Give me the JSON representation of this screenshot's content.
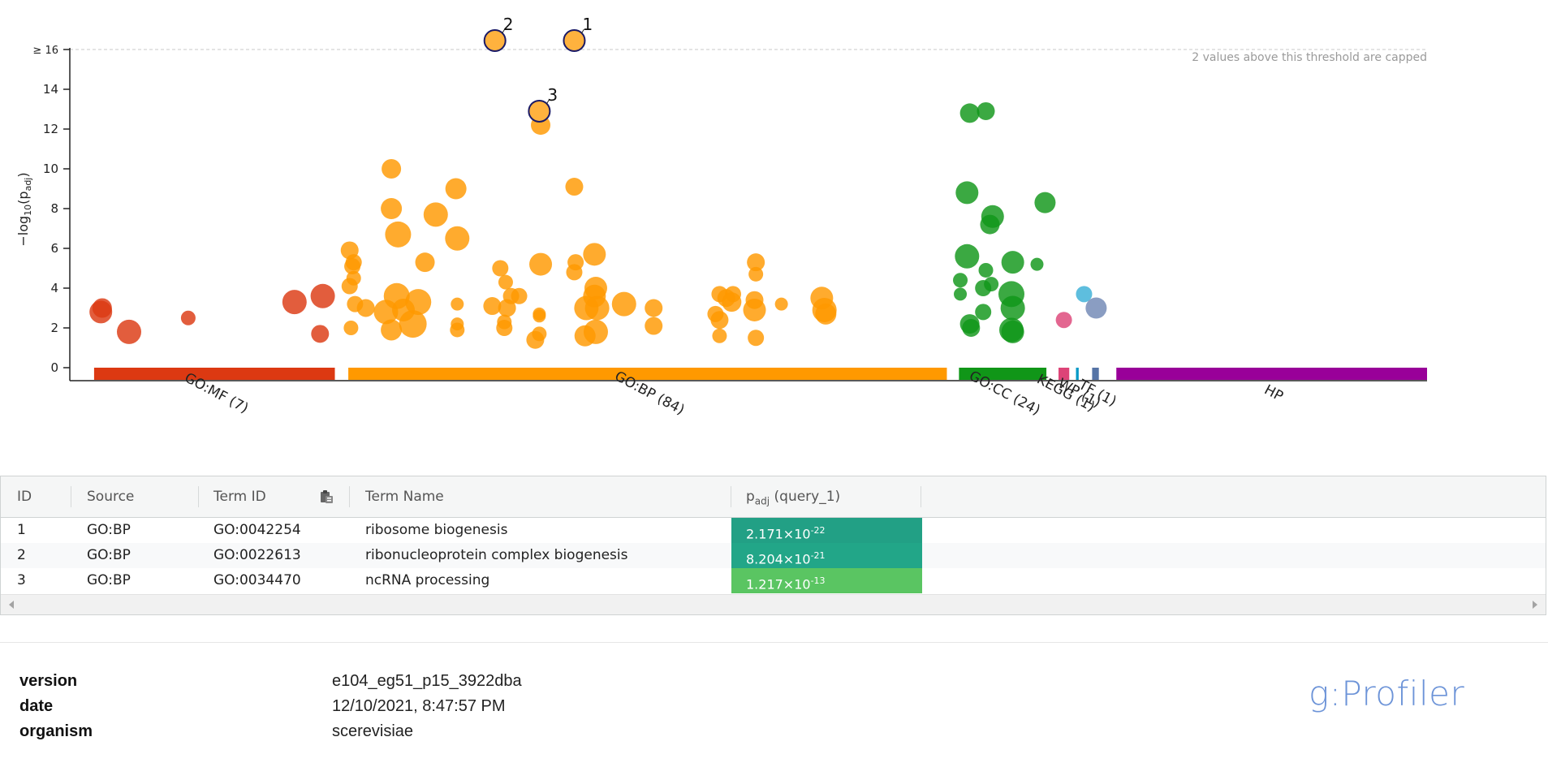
{
  "chart_data": {
    "type": "scatter",
    "ylabel_main": "−log",
    "ylabel_sub10": "10",
    "ylabel_paren_open": "(p",
    "ylabel_sub_adj": "adj",
    "ylabel_paren_close": ")",
    "yticks": [
      {
        "value": 0,
        "label": "0"
      },
      {
        "value": 2,
        "label": "2"
      },
      {
        "value": 4,
        "label": "4"
      },
      {
        "value": 6,
        "label": "6"
      },
      {
        "value": 8,
        "label": "8"
      },
      {
        "value": 10,
        "label": "10"
      },
      {
        "value": 12,
        "label": "12"
      },
      {
        "value": 14,
        "label": "14"
      },
      {
        "value": 16,
        "label": "≥ 16"
      }
    ],
    "ylim": [
      0,
      16
    ],
    "threshold": 16,
    "threshold_note": "2 values above this threshold are capped",
    "x_range": [
      0,
      1000
    ],
    "sources": [
      {
        "name": "GO:MF (7)",
        "start": 9,
        "end": 188,
        "color": "#dc3912"
      },
      {
        "name": "GO:BP (84)",
        "start": 198,
        "end": 643,
        "color": "#ff9900"
      },
      {
        "name": "GO:CC (24)",
        "start": 652,
        "end": 717,
        "color": "#109618"
      },
      {
        "name": "KEGG (1)",
        "start": 726,
        "end": 734,
        "color": "#dd4477"
      },
      {
        "name": "WP (1)",
        "start": 739,
        "end": 741,
        "color": "#0099c6"
      },
      {
        "name": "TF (1)",
        "start": 751,
        "end": 756,
        "color": "#5574a6"
      },
      {
        "name": "HP",
        "start": 769,
        "end": 1000,
        "color": "#990099"
      }
    ],
    "highlighted": [
      {
        "label": "2",
        "x": 307,
        "y": 16,
        "r": 13
      },
      {
        "label": "1",
        "x": 366,
        "y": 16,
        "r": 13
      },
      {
        "label": "3",
        "x": 340,
        "y": 12.9,
        "r": 13
      }
    ],
    "series": [
      {
        "source": "GO:MF",
        "color": "#dc3912",
        "points": [
          {
            "x": 14,
            "y": 2.8,
            "r": 14
          },
          {
            "x": 15,
            "y": 3.0,
            "r": 12
          },
          {
            "x": 35,
            "y": 1.8,
            "r": 15
          },
          {
            "x": 79,
            "y": 2.5,
            "r": 9
          },
          {
            "x": 158,
            "y": 3.3,
            "r": 15
          },
          {
            "x": 179,
            "y": 3.6,
            "r": 15
          },
          {
            "x": 177,
            "y": 1.7,
            "r": 11
          }
        ]
      },
      {
        "source": "GO:BP",
        "color": "#ff9900",
        "points": [
          {
            "x": 199,
            "y": 5.9,
            "r": 11
          },
          {
            "x": 202,
            "y": 5.3,
            "r": 10
          },
          {
            "x": 201,
            "y": 5.1,
            "r": 10
          },
          {
            "x": 202,
            "y": 4.5,
            "r": 9
          },
          {
            "x": 199,
            "y": 4.1,
            "r": 10
          },
          {
            "x": 203,
            "y": 3.2,
            "r": 10
          },
          {
            "x": 211,
            "y": 3.0,
            "r": 11
          },
          {
            "x": 200,
            "y": 2.0,
            "r": 9
          },
          {
            "x": 230,
            "y": 10.0,
            "r": 12
          },
          {
            "x": 230,
            "y": 8.0,
            "r": 13
          },
          {
            "x": 235,
            "y": 6.7,
            "r": 16
          },
          {
            "x": 255,
            "y": 5.3,
            "r": 12
          },
          {
            "x": 263,
            "y": 7.7,
            "r": 15
          },
          {
            "x": 278,
            "y": 9.0,
            "r": 13
          },
          {
            "x": 279,
            "y": 6.5,
            "r": 15
          },
          {
            "x": 234,
            "y": 3.6,
            "r": 16
          },
          {
            "x": 226,
            "y": 2.8,
            "r": 15
          },
          {
            "x": 239,
            "y": 2.9,
            "r": 14
          },
          {
            "x": 250,
            "y": 3.3,
            "r": 16
          },
          {
            "x": 246,
            "y": 2.2,
            "r": 17
          },
          {
            "x": 230,
            "y": 1.9,
            "r": 13
          },
          {
            "x": 279,
            "y": 3.2,
            "r": 8
          },
          {
            "x": 279,
            "y": 2.2,
            "r": 8
          },
          {
            "x": 279,
            "y": 1.9,
            "r": 9
          },
          {
            "x": 311,
            "y": 5.0,
            "r": 10
          },
          {
            "x": 315,
            "y": 4.3,
            "r": 9
          },
          {
            "x": 319,
            "y": 3.6,
            "r": 10
          },
          {
            "x": 305,
            "y": 3.1,
            "r": 11
          },
          {
            "x": 316,
            "y": 3.0,
            "r": 11
          },
          {
            "x": 325,
            "y": 3.6,
            "r": 10
          },
          {
            "x": 314,
            "y": 2.3,
            "r": 9
          },
          {
            "x": 314,
            "y": 2.0,
            "r": 10
          },
          {
            "x": 340,
            "y": 2.7,
            "r": 8
          },
          {
            "x": 340,
            "y": 2.6,
            "r": 8
          },
          {
            "x": 337,
            "y": 1.4,
            "r": 11
          },
          {
            "x": 340,
            "y": 1.7,
            "r": 9
          },
          {
            "x": 341,
            "y": 12.2,
            "r": 12
          },
          {
            "x": 341,
            "y": 5.2,
            "r": 14
          },
          {
            "x": 366,
            "y": 9.1,
            "r": 11
          },
          {
            "x": 367,
            "y": 5.3,
            "r": 10
          },
          {
            "x": 366,
            "y": 4.8,
            "r": 10
          },
          {
            "x": 381,
            "y": 5.7,
            "r": 14
          },
          {
            "x": 382,
            "y": 4.0,
            "r": 14
          },
          {
            "x": 381,
            "y": 3.6,
            "r": 14
          },
          {
            "x": 375,
            "y": 3.0,
            "r": 15
          },
          {
            "x": 383,
            "y": 3.0,
            "r": 15
          },
          {
            "x": 374,
            "y": 1.6,
            "r": 13
          },
          {
            "x": 382,
            "y": 1.8,
            "r": 15
          },
          {
            "x": 403,
            "y": 3.2,
            "r": 15
          },
          {
            "x": 425,
            "y": 3.0,
            "r": 11
          },
          {
            "x": 425,
            "y": 2.1,
            "r": 11
          },
          {
            "x": 474,
            "y": 3.7,
            "r": 10
          },
          {
            "x": 479,
            "y": 3.5,
            "r": 11
          },
          {
            "x": 471,
            "y": 2.7,
            "r": 10
          },
          {
            "x": 474,
            "y": 2.4,
            "r": 11
          },
          {
            "x": 484,
            "y": 3.7,
            "r": 10
          },
          {
            "x": 483,
            "y": 3.3,
            "r": 12
          },
          {
            "x": 474,
            "y": 1.6,
            "r": 9
          },
          {
            "x": 501,
            "y": 5.3,
            "r": 11
          },
          {
            "x": 501,
            "y": 4.7,
            "r": 9
          },
          {
            "x": 500,
            "y": 3.4,
            "r": 11
          },
          {
            "x": 500,
            "y": 2.9,
            "r": 14
          },
          {
            "x": 501,
            "y": 1.5,
            "r": 10
          },
          {
            "x": 520,
            "y": 3.2,
            "r": 8
          },
          {
            "x": 550,
            "y": 3.5,
            "r": 14
          },
          {
            "x": 552,
            "y": 2.9,
            "r": 15
          },
          {
            "x": 553,
            "y": 2.7,
            "r": 13
          }
        ]
      },
      {
        "source": "GO:CC",
        "color": "#109618",
        "points": [
          {
            "x": 660,
            "y": 12.8,
            "r": 12
          },
          {
            "x": 672,
            "y": 12.9,
            "r": 11
          },
          {
            "x": 658,
            "y": 8.8,
            "r": 14
          },
          {
            "x": 677,
            "y": 7.6,
            "r": 14
          },
          {
            "x": 675,
            "y": 7.2,
            "r": 12
          },
          {
            "x": 658,
            "y": 5.6,
            "r": 15
          },
          {
            "x": 672,
            "y": 4.9,
            "r": 9
          },
          {
            "x": 692,
            "y": 5.3,
            "r": 14
          },
          {
            "x": 653,
            "y": 4.4,
            "r": 9
          },
          {
            "x": 670,
            "y": 4.0,
            "r": 10
          },
          {
            "x": 676,
            "y": 4.2,
            "r": 9
          },
          {
            "x": 653,
            "y": 3.7,
            "r": 8
          },
          {
            "x": 691,
            "y": 3.7,
            "r": 16
          },
          {
            "x": 692,
            "y": 3.0,
            "r": 15
          },
          {
            "x": 670,
            "y": 2.8,
            "r": 10
          },
          {
            "x": 660,
            "y": 2.2,
            "r": 12
          },
          {
            "x": 661,
            "y": 2.0,
            "r": 11
          },
          {
            "x": 691,
            "y": 1.9,
            "r": 15
          },
          {
            "x": 692,
            "y": 1.8,
            "r": 14
          },
          {
            "x": 710,
            "y": 5.2,
            "r": 8
          },
          {
            "x": 716,
            "y": 8.3,
            "r": 13
          }
        ]
      },
      {
        "source": "KEGG",
        "color": "#dd4477",
        "points": [
          {
            "x": 730,
            "y": 2.4,
            "r": 10
          }
        ]
      },
      {
        "source": "WP",
        "color": "#3bb0d7",
        "points": [
          {
            "x": 745,
            "y": 3.7,
            "r": 10
          }
        ]
      },
      {
        "source": "TF",
        "color": "#7087b5",
        "points": [
          {
            "x": 754,
            "y": 3.0,
            "r": 13
          }
        ]
      }
    ]
  },
  "table": {
    "headers": {
      "id": "ID",
      "source": "Source",
      "term_id": "Term ID",
      "term_name": "Term Name",
      "padj_prefix": "p",
      "padj_sub": "adj",
      "padj_suffix": "(query_1)"
    },
    "rows": [
      {
        "id": "1",
        "source": "GO:BP",
        "term_id": "GO:0042254",
        "term_name": "ribosome biogenesis",
        "p_mant": "2.171×10",
        "p_exp": "-22",
        "color": "#22a085"
      },
      {
        "id": "2",
        "source": "GO:BP",
        "term_id": "GO:0022613",
        "term_name": "ribonucleoprotein complex biogenesis",
        "p_mant": "8.204×10",
        "p_exp": "-21",
        "color": "#22a688"
      },
      {
        "id": "3",
        "source": "GO:BP",
        "term_id": "GO:0034470",
        "term_name": "ncRNA processing",
        "p_mant": "1.217×10",
        "p_exp": "-13",
        "color": "#5ac562"
      }
    ]
  },
  "meta": {
    "version_label": "version",
    "version_value": "e104_eg51_p15_3922dba",
    "date_label": "date",
    "date_value": "12/10/2021, 8:47:57 PM",
    "organism_label": "organism",
    "organism_value": "scerevisiae"
  },
  "brand": "g:Profiler",
  "colors": {
    "capped_stroke": "#1a1a66",
    "grid": "#c8c8c8"
  }
}
